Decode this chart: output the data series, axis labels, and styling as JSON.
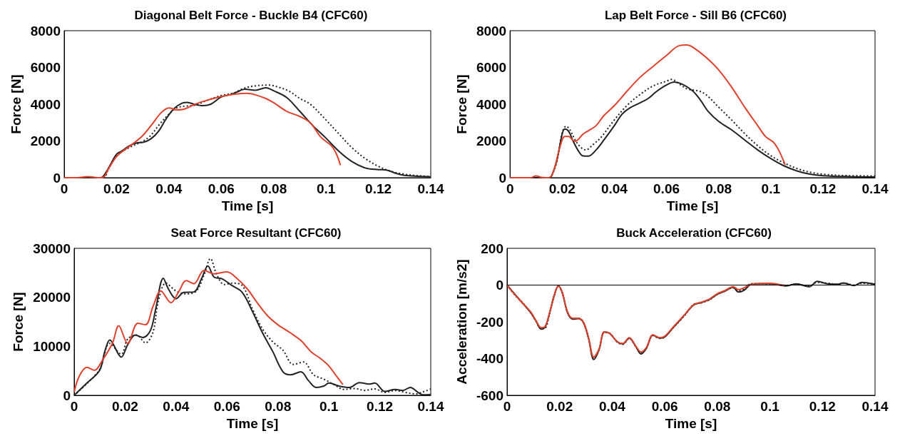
{
  "chart_data": [
    {
      "type": "line",
      "title": "Diagonal Belt Force - Buckle B4 (CFC60)",
      "xlabel": "Time [s]",
      "ylabel": "Force [N]",
      "xlim": [
        0,
        0.14
      ],
      "xticks": [
        0,
        0.02,
        0.04,
        0.06,
        0.08,
        0.1,
        0.12,
        0.14
      ],
      "ylim": [
        0,
        8000
      ],
      "yticks": [
        0,
        2000,
        4000,
        6000,
        8000
      ],
      "marker": "none",
      "line_style": "solid",
      "series": [
        {
          "color": "#222222",
          "x": [
            0,
            0.005,
            0.01,
            0.014,
            0.016,
            0.018,
            0.02,
            0.022,
            0.025,
            0.028,
            0.03,
            0.033,
            0.036,
            0.039,
            0.042,
            0.045,
            0.047,
            0.05,
            0.053,
            0.056,
            0.06,
            0.064,
            0.067,
            0.069,
            0.073,
            0.077,
            0.08,
            0.085,
            0.09,
            0.095,
            0.1,
            0.105,
            0.11,
            0.115,
            0.12,
            0.123,
            0.127,
            0.13,
            0.135,
            0.14
          ],
          "values": [
            0,
            0,
            0,
            0,
            300,
            800,
            1280,
            1450,
            1740,
            1900,
            1920,
            2100,
            2520,
            3220,
            3770,
            4050,
            4100,
            3980,
            3920,
            4000,
            4390,
            4540,
            4730,
            4820,
            4760,
            4890,
            4730,
            4360,
            3610,
            2830,
            2150,
            1430,
            870,
            530,
            440,
            420,
            220,
            130,
            80,
            50
          ]
        },
        {
          "color": "#222222",
          "line_style": "dotted",
          "x": [
            0,
            0.005,
            0.01,
            0.015,
            0.017,
            0.02,
            0.025,
            0.03,
            0.033,
            0.036,
            0.04,
            0.043,
            0.046,
            0.05,
            0.055,
            0.06,
            0.065,
            0.068,
            0.072,
            0.078,
            0.082,
            0.086,
            0.09,
            0.094,
            0.1,
            0.105,
            0.11,
            0.115,
            0.12,
            0.125,
            0.13,
            0.135,
            0.14
          ],
          "values": [
            0,
            0,
            0,
            0,
            500,
            1200,
            1650,
            1980,
            2290,
            2830,
            3460,
            3800,
            3890,
            3950,
            4230,
            4470,
            4620,
            4830,
            4980,
            5040,
            4920,
            4700,
            4310,
            4000,
            3140,
            2370,
            1620,
            1040,
            620,
            340,
            190,
            110,
            60
          ]
        },
        {
          "color": "#e0412c",
          "x": [
            0,
            0.005,
            0.009,
            0.013,
            0.015,
            0.017,
            0.02,
            0.023,
            0.026,
            0.03,
            0.034,
            0.037,
            0.04,
            0.043,
            0.046,
            0.05,
            0.055,
            0.06,
            0.065,
            0.07,
            0.073,
            0.077,
            0.08,
            0.085,
            0.09,
            0.094,
            0.098,
            0.102,
            0.104,
            0.1055
          ],
          "values": [
            0,
            0,
            60,
            0,
            30,
            500,
            1150,
            1510,
            1820,
            2290,
            2990,
            3530,
            3800,
            3690,
            3740,
            4000,
            4230,
            4420,
            4540,
            4590,
            4510,
            4310,
            4080,
            3610,
            3330,
            2990,
            2210,
            1740,
            1280,
            680
          ]
        }
      ]
    },
    {
      "type": "line",
      "title": "Lap Belt Force - Sill B6 (CFC60)",
      "xlabel": "Time [s]",
      "ylabel": "Force [N]",
      "xlim": [
        0,
        0.14
      ],
      "xticks": [
        0,
        0.02,
        0.04,
        0.06,
        0.08,
        0.1,
        0.12,
        0.14
      ],
      "ylim": [
        0,
        8000
      ],
      "yticks": [
        0,
        2000,
        4000,
        6000,
        8000
      ],
      "marker": "none",
      "line_style": "solid",
      "series": [
        {
          "color": "#222222",
          "x": [
            0,
            0.01,
            0.015,
            0.016,
            0.018,
            0.02,
            0.021,
            0.0225,
            0.024,
            0.026,
            0.028,
            0.03,
            0.033,
            0.036,
            0.04,
            0.043,
            0.046,
            0.05,
            0.053,
            0.056,
            0.06,
            0.063,
            0.066,
            0.07,
            0.073,
            0.076,
            0.08,
            0.085,
            0.09,
            0.095,
            0.1,
            0.105,
            0.11,
            0.115,
            0.12,
            0.13,
            0.14
          ],
          "values": [
            0,
            0,
            0,
            110,
            960,
            2370,
            2650,
            2520,
            2050,
            1510,
            1180,
            1170,
            1510,
            2050,
            2830,
            3460,
            3800,
            4080,
            4310,
            4670,
            5040,
            5200,
            5090,
            4730,
            4230,
            3610,
            3070,
            2600,
            2050,
            1510,
            1040,
            650,
            370,
            190,
            110,
            60,
            40
          ]
        },
        {
          "color": "#222222",
          "line_style": "dotted",
          "x": [
            0,
            0.01,
            0.015,
            0.016,
            0.018,
            0.02,
            0.0215,
            0.023,
            0.025,
            0.027,
            0.029,
            0.032,
            0.035,
            0.04,
            0.045,
            0.05,
            0.055,
            0.06,
            0.062,
            0.065,
            0.068,
            0.072,
            0.075,
            0.08,
            0.085,
            0.09,
            0.095,
            0.1,
            0.105,
            0.11,
            0.115,
            0.12,
            0.13,
            0.14
          ],
          "values": [
            0,
            0,
            0,
            100,
            900,
            2450,
            2800,
            2600,
            2050,
            1670,
            1510,
            1820,
            2210,
            3140,
            3950,
            4540,
            5000,
            5250,
            5350,
            5090,
            4830,
            4730,
            4540,
            3840,
            3140,
            2400,
            1740,
            1200,
            810,
            500,
            300,
            190,
            110,
            100
          ]
        },
        {
          "color": "#e0412c",
          "x": [
            0,
            0.008,
            0.01,
            0.012,
            0.015,
            0.017,
            0.019,
            0.021,
            0.0225,
            0.024,
            0.025,
            0.028,
            0.03,
            0.033,
            0.036,
            0.04,
            0.045,
            0.05,
            0.055,
            0.06,
            0.065,
            0.068,
            0.07,
            0.075,
            0.08,
            0.085,
            0.09,
            0.095,
            0.098,
            0.101,
            0.103,
            0.105,
            0.1055
          ],
          "values": [
            0,
            0,
            100,
            20,
            0,
            500,
            1590,
            2240,
            2240,
            2050,
            1980,
            2370,
            2550,
            2830,
            3380,
            3920,
            4730,
            5480,
            6070,
            6650,
            7190,
            7220,
            7110,
            6570,
            5870,
            4930,
            3840,
            2830,
            2240,
            1930,
            1510,
            890,
            700
          ]
        }
      ]
    },
    {
      "type": "line",
      "title": "Seat Force Resultant (CFC60)",
      "xlabel": "Time [s]",
      "ylabel": "Force [N]",
      "xlim": [
        0,
        0.14
      ],
      "xticks": [
        0,
        0.02,
        0.04,
        0.06,
        0.08,
        0.1,
        0.12,
        0.14
      ],
      "ylim": [
        0,
        30000
      ],
      "yticks": [
        0,
        10000,
        20000,
        30000
      ],
      "marker": "none",
      "line_style": "solid",
      "series": [
        {
          "color": "#222222",
          "x": [
            0,
            0.005,
            0.01,
            0.012,
            0.014,
            0.0185,
            0.021,
            0.024,
            0.027,
            0.03,
            0.032,
            0.035,
            0.037,
            0.04,
            0.043,
            0.047,
            0.05,
            0.0525,
            0.055,
            0.058,
            0.062,
            0.066,
            0.07,
            0.074,
            0.078,
            0.082,
            0.085,
            0.089,
            0.092,
            0.095,
            0.098,
            0.1,
            0.104,
            0.108,
            0.112,
            0.116,
            0.118,
            0.122,
            0.126,
            0.129,
            0.132,
            0.135,
            0.137,
            0.14
          ],
          "values": [
            0,
            2500,
            5100,
            8900,
            11300,
            7800,
            10300,
            12300,
            11800,
            13300,
            17600,
            23900,
            21700,
            19700,
            21000,
            21100,
            23800,
            26400,
            24100,
            23800,
            22400,
            21000,
            17100,
            12700,
            8900,
            4800,
            4200,
            4800,
            3000,
            1600,
            1900,
            2500,
            1900,
            1600,
            2600,
            2300,
            2500,
            800,
            1200,
            1000,
            1600,
            600,
            100,
            200
          ]
        },
        {
          "color": "#222222",
          "line_style": "dotted",
          "x": [
            0,
            0.005,
            0.01,
            0.014,
            0.0185,
            0.021,
            0.0245,
            0.028,
            0.031,
            0.033,
            0.036,
            0.04,
            0.044,
            0.048,
            0.051,
            0.0535,
            0.056,
            0.059,
            0.062,
            0.066,
            0.07,
            0.074,
            0.078,
            0.082,
            0.086,
            0.09,
            0.094,
            0.098,
            0.102,
            0.106,
            0.11,
            0.114,
            0.118,
            0.122,
            0.126,
            0.13,
            0.134,
            0.138,
            0.14
          ],
          "values": [
            0,
            2400,
            5300,
            10600,
            8400,
            11500,
            12300,
            10700,
            13000,
            19100,
            22900,
            21300,
            20700,
            21300,
            24600,
            27900,
            24600,
            22600,
            22900,
            22400,
            17600,
            13500,
            10900,
            9200,
            6300,
            6800,
            4200,
            3300,
            2200,
            1200,
            1400,
            1000,
            1300,
            600,
            1000,
            600,
            300,
            900,
            1300
          ]
        },
        {
          "color": "#e0412c",
          "x": [
            0,
            0.002,
            0.005,
            0.008,
            0.011,
            0.015,
            0.0175,
            0.021,
            0.025,
            0.028,
            0.031,
            0.034,
            0.038,
            0.041,
            0.044,
            0.047,
            0.051,
            0.055,
            0.06,
            0.064,
            0.068,
            0.072,
            0.076,
            0.08,
            0.085,
            0.089,
            0.093,
            0.097,
            0.1,
            0.103,
            0.1055
          ],
          "values": [
            700,
            3900,
            5700,
            5100,
            7100,
            10600,
            14200,
            10600,
            14700,
            14400,
            18200,
            21300,
            18900,
            21100,
            23400,
            22800,
            25500,
            24800,
            25200,
            23800,
            21700,
            18800,
            16200,
            14400,
            12700,
            11200,
            8900,
            7400,
            6000,
            3900,
            2200
          ]
        }
      ]
    },
    {
      "type": "line",
      "title": "Buck Acceleration (CFC60)",
      "xlabel": "Time [s]",
      "ylabel": "Acceleration [m/s2]",
      "xlim": [
        0,
        0.14
      ],
      "xticks": [
        0,
        0.02,
        0.04,
        0.06,
        0.08,
        0.1,
        0.12,
        0.14
      ],
      "ylim": [
        -600,
        200
      ],
      "yticks": [
        -600,
        -400,
        -200,
        0,
        200
      ],
      "marker": "none",
      "line_style": "solid",
      "ref_lines": [
        {
          "axis": "y",
          "value": 0,
          "color": "#000000"
        }
      ],
      "series": [
        {
          "color": "#222222",
          "x": [
            0,
            0.003,
            0.006,
            0.009,
            0.011,
            0.013,
            0.0145,
            0.016,
            0.018,
            0.0195,
            0.021,
            0.023,
            0.025,
            0.027,
            0.029,
            0.031,
            0.033,
            0.035,
            0.037,
            0.039,
            0.042,
            0.044,
            0.0465,
            0.049,
            0.051,
            0.053,
            0.0555,
            0.058,
            0.06,
            0.063,
            0.066,
            0.068,
            0.071,
            0.074,
            0.077,
            0.08,
            0.083,
            0.086,
            0.088,
            0.09,
            0.093,
            0.096,
            0.1,
            0.103,
            0.106,
            0.11,
            0.115,
            0.118,
            0.122,
            0.126,
            0.128,
            0.132,
            0.135,
            0.14
          ],
          "values": [
            0,
            -50,
            -100,
            -150,
            -195,
            -240,
            -228,
            -162,
            -55,
            -4,
            -40,
            -150,
            -185,
            -183,
            -203,
            -290,
            -405,
            -352,
            -255,
            -262,
            -310,
            -320,
            -288,
            -335,
            -375,
            -345,
            -272,
            -288,
            -282,
            -235,
            -188,
            -155,
            -108,
            -95,
            -78,
            -50,
            -32,
            -12,
            -38,
            -30,
            5,
            8,
            8,
            2,
            -5,
            7,
            -9,
            20,
            7,
            5,
            12,
            -3,
            15,
            5
          ]
        },
        {
          "color": "#222222",
          "line_style": "dotted",
          "x": [
            0,
            0.003,
            0.006,
            0.009,
            0.011,
            0.013,
            0.0145,
            0.016,
            0.018,
            0.0195,
            0.021,
            0.023,
            0.025,
            0.027,
            0.029,
            0.031,
            0.033,
            0.035,
            0.037,
            0.039,
            0.042,
            0.044,
            0.0465,
            0.049,
            0.051,
            0.053,
            0.0555,
            0.058,
            0.06,
            0.063,
            0.066,
            0.068,
            0.071,
            0.074,
            0.077,
            0.08,
            0.083,
            0.086,
            0.088,
            0.09,
            0.093,
            0.096,
            0.1,
            0.103,
            0.106,
            0.11,
            0.115,
            0.118,
            0.122,
            0.126,
            0.128,
            0.132,
            0.135,
            0.14
          ],
          "values": [
            0,
            -55,
            -97,
            -150,
            -197,
            -238,
            -235,
            -165,
            -52,
            -8,
            -42,
            -148,
            -183,
            -180,
            -200,
            -288,
            -400,
            -350,
            -258,
            -262,
            -312,
            -322,
            -290,
            -336,
            -370,
            -343,
            -275,
            -290,
            -282,
            -235,
            -190,
            -158,
            -105,
            -96,
            -80,
            -50,
            -30,
            -15,
            -30,
            -22,
            8,
            8,
            6,
            3,
            -2,
            5,
            -5,
            15,
            10,
            3,
            10,
            0,
            10,
            5
          ]
        },
        {
          "color": "#e0412c",
          "x": [
            0,
            0.003,
            0.006,
            0.009,
            0.011,
            0.013,
            0.0145,
            0.016,
            0.018,
            0.0195,
            0.021,
            0.023,
            0.025,
            0.027,
            0.029,
            0.031,
            0.033,
            0.035,
            0.037,
            0.039,
            0.042,
            0.044,
            0.0465,
            0.049,
            0.051,
            0.053,
            0.0555,
            0.058,
            0.06,
            0.063,
            0.066,
            0.068,
            0.071,
            0.074,
            0.077,
            0.08,
            0.083,
            0.086,
            0.088,
            0.09,
            0.093,
            0.096,
            0.1,
            0.103,
            0.1055
          ],
          "values": [
            0,
            -53,
            -99,
            -146,
            -193,
            -232,
            -224,
            -161,
            -53,
            -6,
            -40,
            -146,
            -181,
            -181,
            -201,
            -286,
            -392,
            -348,
            -255,
            -263,
            -309,
            -317,
            -286,
            -333,
            -364,
            -340,
            -271,
            -286,
            -278,
            -232,
            -185,
            -154,
            -107,
            -93,
            -76,
            -47,
            -29,
            -9,
            -25,
            -16,
            5,
            7,
            10,
            5,
            -2
          ]
        }
      ]
    }
  ]
}
